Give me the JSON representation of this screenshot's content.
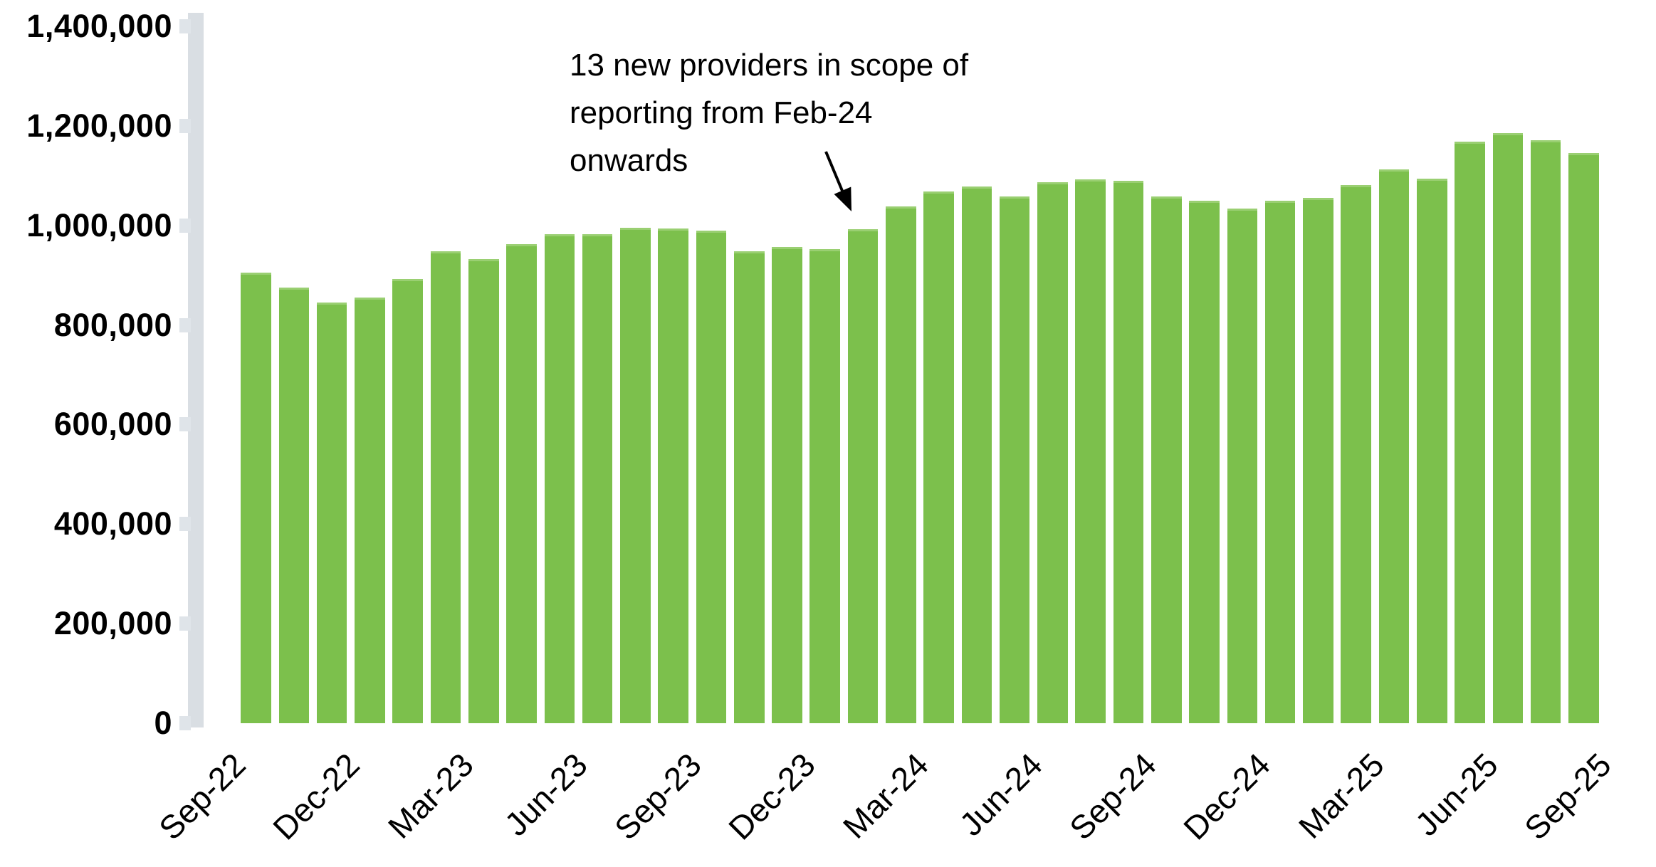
{
  "chart_data": {
    "type": "bar",
    "title": "",
    "xlabel": "",
    "ylabel": "",
    "ylim": [
      0,
      1400000
    ],
    "y_tick_step": 200000,
    "grid": false,
    "legend_position": "none",
    "categories": [
      "Sep-22",
      "Oct-22",
      "Nov-22",
      "Dec-22",
      "Jan-23",
      "Feb-23",
      "Mar-23",
      "Apr-23",
      "May-23",
      "Jun-23",
      "Jul-23",
      "Aug-23",
      "Sep-23",
      "Oct-23",
      "Nov-23",
      "Dec-23",
      "Jan-24",
      "Feb-24",
      "Mar-24",
      "Apr-24",
      "May-24",
      "Jun-24",
      "Jul-24",
      "Aug-24",
      "Sep-24",
      "Oct-24",
      "Nov-24",
      "Dec-24",
      "Jan-25",
      "Feb-25",
      "Mar-25",
      "Apr-25",
      "May-25",
      "Jun-25",
      "Jul-25",
      "Aug-25",
      "Sep-25"
    ],
    "values": [
      null,
      905000,
      875000,
      845000,
      855000,
      892000,
      948000,
      933000,
      963000,
      982000,
      982000,
      995000,
      994000,
      990000,
      948000,
      956000,
      953000,
      992000,
      1038000,
      1068000,
      1078000,
      1058000,
      1087000,
      1092000,
      1089000,
      1058000,
      1049000,
      1034000,
      1049000,
      1056000,
      1081000,
      1112000,
      1094000,
      1168000,
      1185000,
      1171000,
      1145000
    ],
    "y_tick_labels": [
      "0",
      "200,000",
      "400,000",
      "600,000",
      "800,000",
      "1,000,000",
      "1,200,000",
      "1,400,000"
    ],
    "x_tick_labels": [
      "Sep-22",
      "Dec-22",
      "Mar-23",
      "Jun-23",
      "Sep-23",
      "Dec-23",
      "Mar-24",
      "Jun-24",
      "Sep-24",
      "Dec-24",
      "Mar-25",
      "Jun-25",
      "Sep-25"
    ],
    "x_tick_every": 3,
    "annotation": {
      "text": "13 new providers in scope of\nreporting from Feb-24\nonwards",
      "points_to": "Feb-24"
    },
    "colors": {
      "bar": "#7CC04C",
      "bar_top_edge": "#9ACF72",
      "axis_band": "#D9DEE3",
      "text": "#000000"
    }
  }
}
